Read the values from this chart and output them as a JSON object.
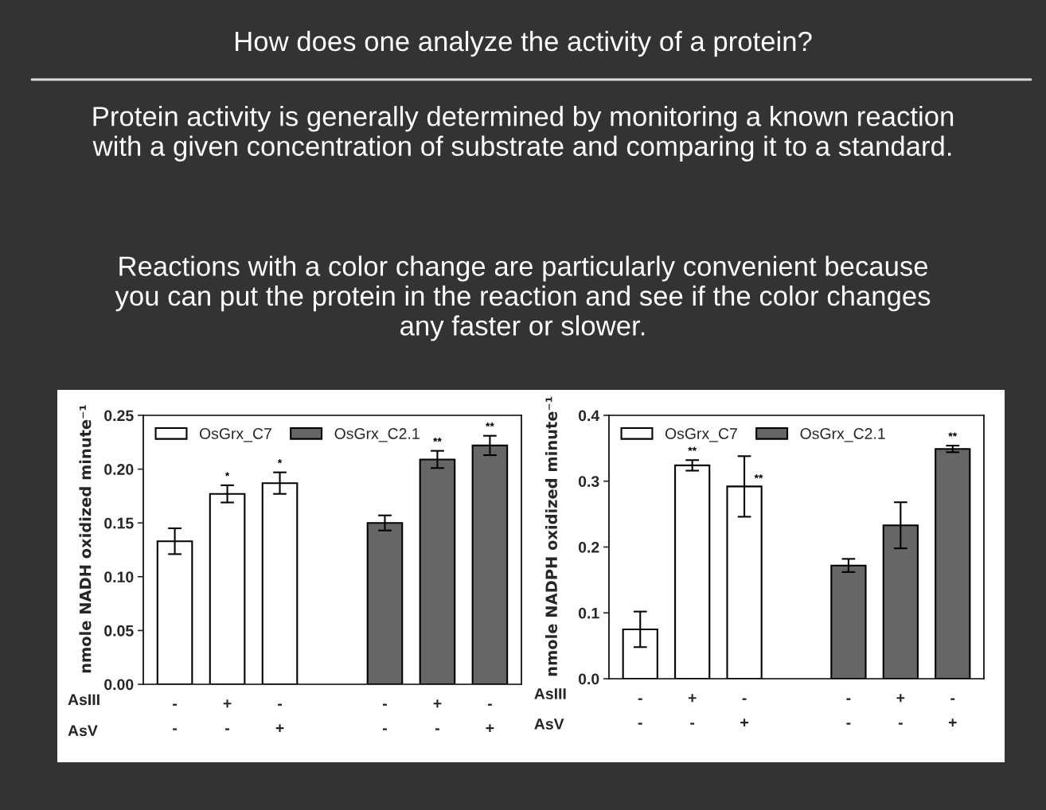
{
  "chart_data": [
    {
      "type": "bar",
      "title": "How does one analyze the activity of a protein?",
      "subtitle": "Protein activity is generally determined by monitoring a known reaction\nwith a given concentration of substrate and comparing it to a standard.",
      "ylabel": "nmole NADH oxidized minute⁻¹",
      "categories": [
        "-\n-",
        "+\n-",
        "-\n+",
        null,
        "-\n-",
        "+\n-",
        "-\n+"
      ],
      "series": [
        {
          "name": "OsGrx_C7",
          "color": "#ffffff",
          "values": [
            0.133,
            0.177,
            0.187,
            null,
            null,
            null,
            null
          ],
          "errors": [
            0.012,
            0.008,
            0.01,
            null,
            null,
            null,
            null
          ],
          "value_labels": [
            null,
            "*",
            "*",
            null,
            null,
            null,
            null
          ]
        },
        {
          "name": "OsGrx_C2.1",
          "color": "#666666",
          "values": [
            null,
            null,
            null,
            null,
            0.15,
            0.209,
            0.222
          ],
          "errors": [
            null,
            null,
            null,
            null,
            0.007,
            0.008,
            0.009
          ],
          "value_labels": [
            null,
            null,
            null,
            null,
            null,
            "**",
            "**"
          ]
        }
      ],
      "ylim": [
        0,
        0.25
      ],
      "yticks": [
        {
          "value": 0,
          "label": "0.00"
        },
        {
          "value": 0.05,
          "label": "0.05"
        },
        {
          "value": 0.1,
          "label": "0.10"
        },
        {
          "value": 0.15,
          "label": "0.15"
        },
        {
          "value": 0.2,
          "label": "0.20"
        },
        {
          "value": 0.25,
          "label": "0.25"
        }
      ],
      "legend": "top left",
      "grid": false,
      "annotations": [
        "Reactions with a color change are particularly convenient because\nyou can put the protein in the reaction and see if the color changes\nany faster or slower.",
        "AsIII",
        "AsV"
      ]
    },
    {
      "type": "bar",
      "ylabel": "nmole NADPH oxidized minute⁻¹",
      "categories": [
        "-\n-",
        "+\n-",
        "-\n+",
        null,
        "-\n-",
        "+\n-",
        "-\n+"
      ],
      "series": [
        {
          "name": "OsGrx_C7",
          "color": "#ffffff",
          "values": [
            0.075,
            0.324,
            0.292,
            null,
            null,
            null,
            null
          ],
          "errors": [
            0.027,
            0.008,
            0.046,
            null,
            null,
            null,
            null
          ],
          "value_labels": [
            null,
            "**",
            "**",
            null,
            null,
            null,
            null
          ]
        },
        {
          "name": "OsGrx_C2.1",
          "color": "#666666",
          "values": [
            null,
            null,
            null,
            null,
            0.172,
            0.233,
            0.349
          ],
          "errors": [
            null,
            null,
            null,
            null,
            0.01,
            0.035,
            0.005
          ],
          "value_labels": [
            null,
            null,
            null,
            null,
            null,
            null,
            "**"
          ]
        }
      ],
      "ylim": [
        0,
        0.4
      ],
      "yticks": [
        {
          "value": 0,
          "label": "0.0"
        },
        {
          "value": 0.1,
          "label": "0.1"
        },
        {
          "value": 0.2,
          "label": "0.2"
        },
        {
          "value": 0.3,
          "label": "0.3"
        },
        {
          "value": 0.4,
          "label": "0.4"
        }
      ],
      "legend": "top left",
      "grid": false,
      "annotations": [
        "AsIII",
        "AsV"
      ]
    }
  ]
}
